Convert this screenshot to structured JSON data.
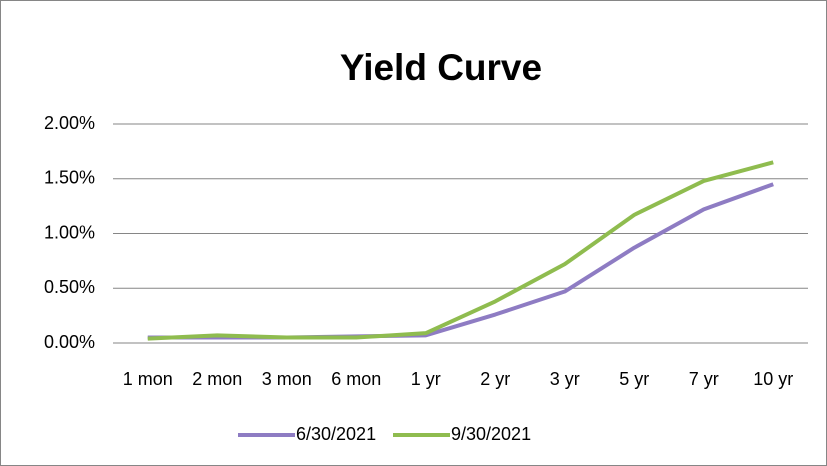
{
  "chart_data": {
    "type": "line",
    "title": "Yield Curve",
    "categories": [
      "1 mon",
      "2 mon",
      "3 mon",
      "6 mon",
      "1 yr",
      "2 yr",
      "3 yr",
      "5 yr",
      "7 yr",
      "10 yr"
    ],
    "series": [
      {
        "name": "6/30/2021",
        "color": "#8e7cc3",
        "values": [
          0.05,
          0.05,
          0.05,
          0.06,
          0.07,
          0.26,
          0.47,
          0.87,
          1.22,
          1.45
        ]
      },
      {
        "name": "9/30/2021",
        "color": "#8fbc4f",
        "values": [
          0.04,
          0.07,
          0.05,
          0.05,
          0.09,
          0.38,
          0.72,
          1.17,
          1.48,
          1.65
        ]
      }
    ],
    "ylim": [
      0,
      2
    ],
    "yticks": [
      {
        "value": 0,
        "label": "0.00%"
      },
      {
        "value": 0.5,
        "label": "0.50%"
      },
      {
        "value": 1,
        "label": "1.00%"
      },
      {
        "value": 1.5,
        "label": "1.50%"
      },
      {
        "value": 2,
        "label": "2.00%"
      }
    ],
    "grid": true,
    "legend": "bottom"
  }
}
